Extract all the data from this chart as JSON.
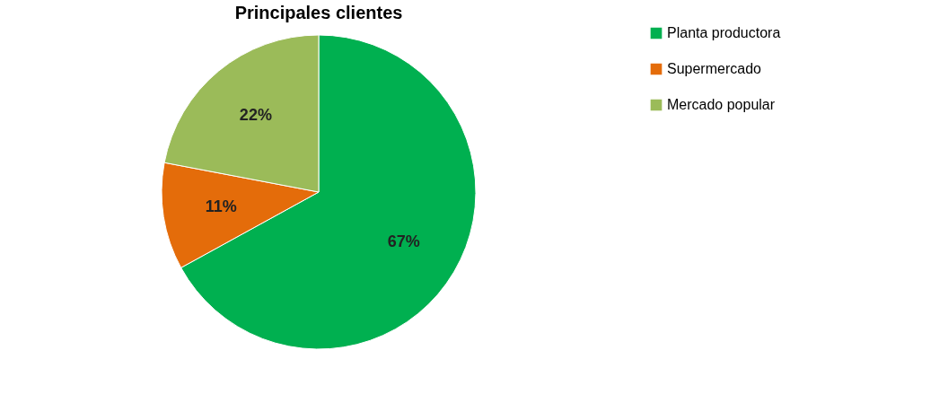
{
  "chart_data": {
    "type": "pie",
    "title": "Principales clientes",
    "categories": [
      "Planta productora",
      "Supermercado",
      "Mercado popular"
    ],
    "values": [
      67,
      11,
      22
    ],
    "colors": [
      "#00b050",
      "#e46c0a",
      "#9bbb59"
    ],
    "value_labels": [
      "67%",
      "11%",
      "22%"
    ],
    "legend": "right"
  }
}
